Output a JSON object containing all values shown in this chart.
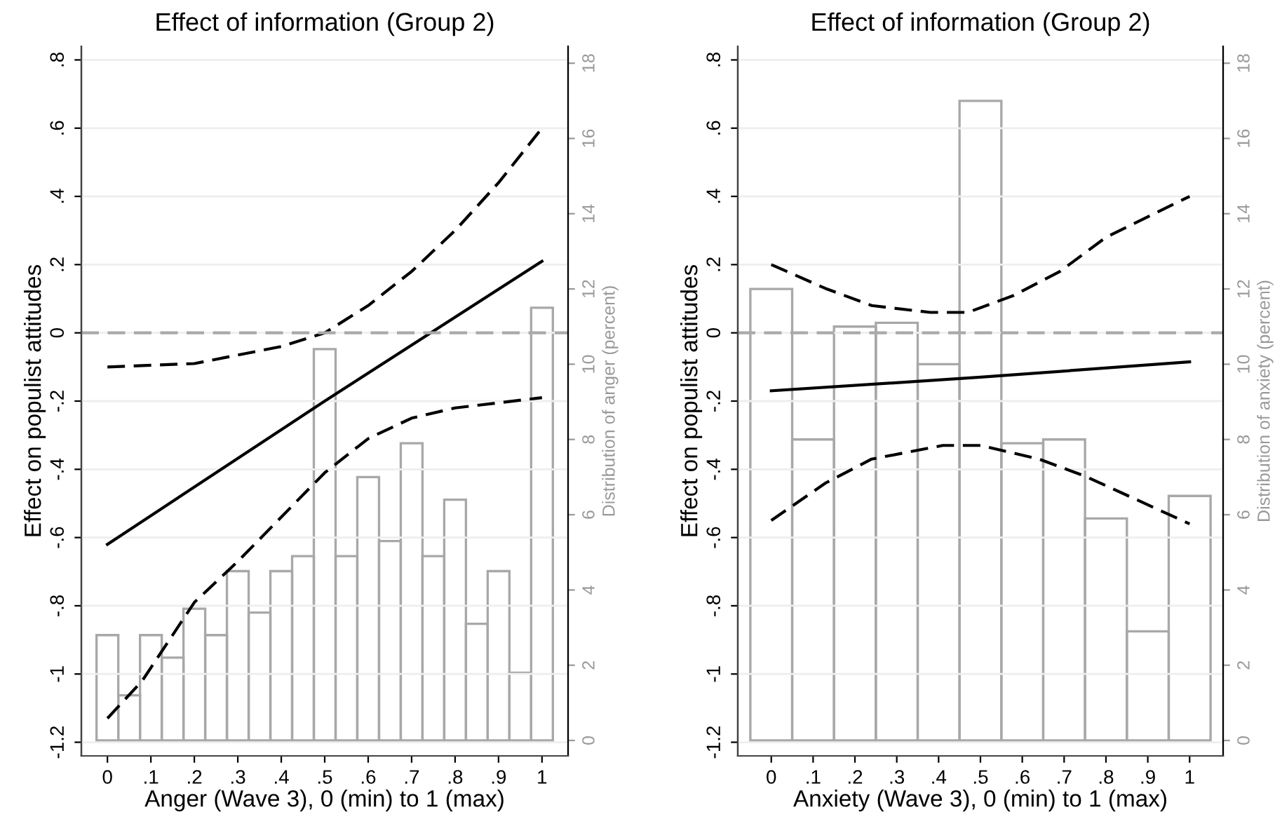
{
  "chart_data": [
    {
      "type": "line",
      "title": "Effect of information (Group 2)",
      "xlabel": "Anger (Wave 3), 0 (min) to 1 (max)",
      "ylabel": "Effect on populist attitudes",
      "y2label": "Distribution of anger (percent)",
      "xlim": [
        -0.06,
        1.06
      ],
      "xticks": [
        0,
        {
          "value": 0.1,
          "label": ".1"
        },
        {
          "value": 0.2,
          "label": ".2"
        },
        {
          "value": 0.3,
          "label": ".3"
        },
        {
          "value": 0.4,
          "label": ".4"
        },
        {
          "value": 0.5,
          "label": ".5"
        },
        {
          "value": 0.6,
          "label": ".6"
        },
        {
          "value": 0.7,
          "label": ".7"
        },
        {
          "value": 0.8,
          "label": ".8"
        },
        {
          "value": 0.9,
          "label": ".9"
        },
        1
      ],
      "ylim": [
        -1.24,
        0.84
      ],
      "yticks": [
        -1.2,
        -1,
        {
          "value": -0.8,
          "label": "-.8"
        },
        {
          "value": -0.6,
          "label": "-.6"
        },
        {
          "value": -0.4,
          "label": "-.4"
        },
        {
          "value": -0.2,
          "label": "-.2"
        },
        0,
        {
          "value": 0.2,
          "label": ".2"
        },
        {
          "value": 0.4,
          "label": ".4"
        },
        {
          "value": 0.6,
          "label": ".6"
        },
        {
          "value": 0.8,
          "label": ".8"
        }
      ],
      "y2lim": [
        -0.41,
        18.45
      ],
      "y2ticks": [
        0,
        2,
        4,
        6,
        8,
        10,
        12,
        14,
        16,
        18
      ],
      "grid": "y",
      "ref_lines": [
        {
          "axis": "y",
          "value": 0,
          "color": "#aaaaaa",
          "line_style": "dashed"
        }
      ],
      "series": [
        {
          "type": "histogram",
          "axis": "y2",
          "color": "#a8a8a8",
          "bins": [
            -0.025,
            0.025,
            0.075,
            0.125,
            0.175,
            0.225,
            0.275,
            0.325,
            0.375,
            0.425,
            0.475,
            0.525,
            0.575,
            0.625,
            0.675,
            0.725,
            0.775,
            0.825,
            0.875,
            0.925,
            0.975,
            1.025
          ],
          "values": [
            2.8,
            1.2,
            2.8,
            2.2,
            3.5,
            2.8,
            4.5,
            3.4,
            4.5,
            4.9,
            10.4,
            4.9,
            7.0,
            5.3,
            7.9,
            4.9,
            6.4,
            3.1,
            4.5,
            1.8,
            11.5
          ]
        },
        {
          "color": "#000000",
          "line_style": "solid",
          "x": [
            0,
            0.5,
            1
          ],
          "values": [
            -0.62,
            -0.2,
            0.21
          ]
        },
        {
          "color": "#000000",
          "line_style": "dashed",
          "x": [
            0,
            0.2,
            0.4,
            0.5,
            0.6,
            0.7,
            0.8,
            0.9,
            1
          ],
          "values": [
            -0.1,
            -0.09,
            -0.04,
            0.0,
            0.08,
            0.18,
            0.3,
            0.44,
            0.6
          ]
        },
        {
          "color": "#000000",
          "line_style": "dashed",
          "x": [
            0,
            0.08,
            0.2,
            0.3,
            0.4,
            0.5,
            0.6,
            0.7,
            0.8,
            1
          ],
          "values": [
            -1.13,
            -1.02,
            -0.79,
            -0.67,
            -0.54,
            -0.41,
            -0.31,
            -0.25,
            -0.22,
            -0.19
          ]
        }
      ]
    },
    {
      "type": "line",
      "title": "Effect of information (Group 2)",
      "xlabel": "Anxiety (Wave 3), 0 (min) to 1 (max)",
      "ylabel": "Effect on populist attitudes",
      "y2label": "Distribution of anxiety (percent)",
      "xlim": [
        -0.08,
        1.08
      ],
      "xticks": [
        0,
        {
          "value": 0.1,
          "label": ".1"
        },
        {
          "value": 0.2,
          "label": ".2"
        },
        {
          "value": 0.3,
          "label": ".3"
        },
        {
          "value": 0.4,
          "label": ".4"
        },
        {
          "value": 0.5,
          "label": ".5"
        },
        {
          "value": 0.6,
          "label": ".6"
        },
        {
          "value": 0.7,
          "label": ".7"
        },
        {
          "value": 0.8,
          "label": ".8"
        },
        {
          "value": 0.9,
          "label": ".9"
        },
        1
      ],
      "ylim": [
        -1.24,
        0.84
      ],
      "yticks": [
        -1.2,
        -1,
        {
          "value": -0.8,
          "label": "-.8"
        },
        {
          "value": -0.6,
          "label": "-.6"
        },
        {
          "value": -0.4,
          "label": "-.4"
        },
        {
          "value": -0.2,
          "label": "-.2"
        },
        0,
        {
          "value": 0.2,
          "label": ".2"
        },
        {
          "value": 0.4,
          "label": ".4"
        },
        {
          "value": 0.6,
          "label": ".6"
        },
        {
          "value": 0.8,
          "label": ".8"
        }
      ],
      "y2lim": [
        -0.41,
        18.45
      ],
      "y2ticks": [
        0,
        2,
        4,
        6,
        8,
        10,
        12,
        14,
        16,
        18
      ],
      "grid": "y",
      "ref_lines": [
        {
          "axis": "y",
          "value": 0,
          "color": "#aaaaaa",
          "line_style": "dashed"
        }
      ],
      "series": [
        {
          "type": "histogram",
          "axis": "y2",
          "color": "#a8a8a8",
          "bins": [
            -0.05,
            0.05,
            0.15,
            0.25,
            0.35,
            0.45,
            0.55,
            0.65,
            0.75,
            0.85,
            0.95,
            1.05
          ],
          "values": [
            12.0,
            8.0,
            11.0,
            11.1,
            10.0,
            17.0,
            7.9,
            8.0,
            5.9,
            2.9,
            6.5
          ]
        },
        {
          "color": "#000000",
          "line_style": "solid",
          "x": [
            0,
            0.5,
            1
          ],
          "values": [
            -0.17,
            -0.13,
            -0.085
          ]
        },
        {
          "color": "#000000",
          "line_style": "dashed",
          "x": [
            0,
            0.13,
            0.24,
            0.38,
            0.47,
            0.58,
            0.69,
            0.8,
            1
          ],
          "values": [
            0.2,
            0.13,
            0.08,
            0.06,
            0.06,
            0.11,
            0.18,
            0.28,
            0.4
          ]
        },
        {
          "color": "#000000",
          "line_style": "dashed",
          "x": [
            0,
            0.13,
            0.24,
            0.41,
            0.5,
            0.64,
            0.75,
            1
          ],
          "values": [
            -0.55,
            -0.44,
            -0.37,
            -0.33,
            -0.33,
            -0.37,
            -0.42,
            -0.56
          ]
        }
      ]
    }
  ]
}
